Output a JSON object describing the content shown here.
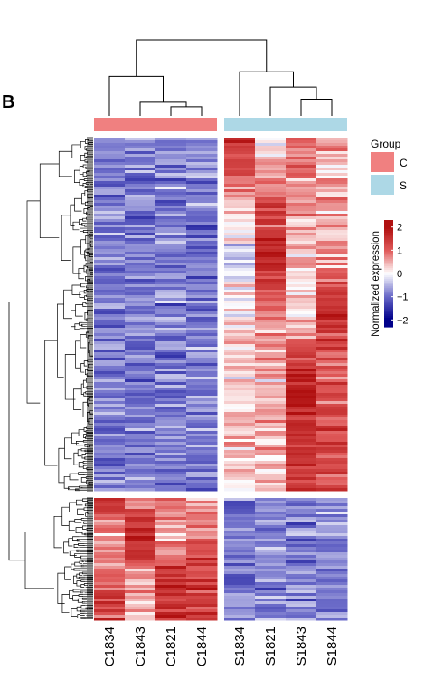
{
  "panel_label": "B",
  "chart_data": {
    "type": "heatmap",
    "columns": [
      "C1834",
      "C1843",
      "C1821",
      "C1844",
      "S1834",
      "S1821",
      "S1843",
      "S1844"
    ],
    "column_groups": [
      "C",
      "C",
      "C",
      "C",
      "S",
      "S",
      "S",
      "S"
    ],
    "row_clusters": [
      {
        "rows_fraction": 0.77,
        "mean_expression": [
          -0.85,
          -0.9,
          -0.85,
          -0.85,
          0.25,
          0.6,
          0.85,
          0.7
        ],
        "block_profiles": [
          [
            -0.8,
            -0.85,
            -0.8,
            -0.8,
            1.6,
            0.1,
            0.9,
            0.4
          ],
          [
            -0.9,
            -0.95,
            -0.85,
            -0.9,
            0.5,
            1.0,
            0.7,
            0.6
          ],
          [
            -0.85,
            -0.9,
            -0.9,
            -0.85,
            -0.3,
            1.8,
            0.3,
            0.6
          ],
          [
            -0.8,
            -0.85,
            -0.8,
            -0.8,
            0.2,
            0.7,
            0.2,
            1.6
          ],
          [
            -0.85,
            -0.9,
            -0.85,
            -0.85,
            0.3,
            0.4,
            1.8,
            0.9
          ],
          [
            -0.9,
            -0.9,
            -0.85,
            -0.9,
            0.2,
            0.4,
            1.5,
            1.2
          ]
        ]
      },
      {
        "rows_fraction": 0.23,
        "mean_expression": [
          1.0,
          1.0,
          1.0,
          1.0,
          -0.85,
          -0.8,
          -0.8,
          -0.8
        ],
        "block_profiles": [
          [
            1.6,
            0.6,
            1.0,
            0.6,
            -0.9,
            -0.8,
            -0.8,
            -0.7
          ],
          [
            0.3,
            1.8,
            0.5,
            1.0,
            -0.9,
            -0.8,
            -0.8,
            -0.8
          ],
          [
            1.2,
            0.5,
            1.6,
            1.4,
            -0.8,
            -0.8,
            -0.9,
            -0.8
          ]
        ]
      }
    ],
    "column_dendrogram": [
      {
        "left": 2,
        "right": 3,
        "height": 0.12
      },
      {
        "left": 1,
        "right": 8,
        "height": 0.18
      },
      {
        "left": 6,
        "right": 7,
        "height": 0.22
      },
      {
        "left": 5,
        "right": 10,
        "height": 0.38
      },
      {
        "left": 0,
        "right": 9,
        "height": 0.52
      },
      {
        "left": 4,
        "right": 11,
        "height": 0.58
      },
      {
        "left": 12,
        "right": 13,
        "height": 1.0
      }
    ],
    "legend_group": {
      "title": "Group",
      "entries": [
        {
          "label": "C",
          "color": "#F08080"
        },
        {
          "label": "S",
          "color": "#ADD8E6"
        }
      ]
    },
    "legend_scale": {
      "title": "Normalized expression",
      "ticks": [
        "2",
        "1",
        "0",
        "−1",
        "−2"
      ],
      "tick_values": [
        2,
        1,
        0,
        -1,
        -2
      ],
      "range": [
        -2.3,
        2.3
      ],
      "colors": {
        "low": "#00008B",
        "mid_low": "#6A6AC8",
        "mid": "#FFFFFF",
        "mid_high": "#E05A5A",
        "high": "#B01010"
      }
    }
  }
}
